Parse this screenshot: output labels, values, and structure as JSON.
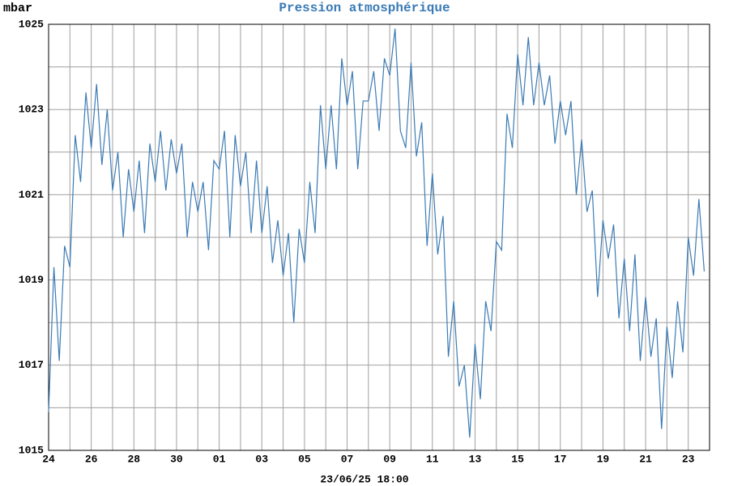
{
  "chart_data": {
    "type": "line",
    "title": "Pression atmosphérique",
    "y_label": "mbar",
    "x_label": "23/06/25 18:00",
    "categories": [
      "24",
      null,
      null,
      null,
      null,
      null,
      null,
      null,
      "26",
      null,
      null,
      null,
      null,
      null,
      null,
      null,
      "28",
      null,
      null,
      null,
      null,
      null,
      null,
      null,
      "30",
      null,
      null,
      null,
      null,
      null,
      null,
      null,
      "01",
      null,
      null,
      null,
      null,
      null,
      null,
      null,
      "03",
      null,
      null,
      null,
      null,
      null,
      null,
      null,
      "05",
      null,
      null,
      null,
      null,
      null,
      null,
      null,
      "07",
      null,
      null,
      null,
      null,
      null,
      null,
      null,
      "09",
      null,
      null,
      null,
      null,
      null,
      null,
      null,
      "11",
      null,
      null,
      null,
      null,
      null,
      null,
      null,
      "13",
      null,
      null,
      null,
      null,
      null,
      null,
      null,
      "15",
      null,
      null,
      null,
      null,
      null,
      null,
      null,
      "17",
      null,
      null,
      null,
      null,
      null,
      null,
      null,
      "19",
      null,
      null,
      null,
      null,
      null,
      null,
      null,
      "21",
      null,
      null,
      null,
      null,
      null,
      null,
      null,
      "23",
      null,
      null,
      null
    ],
    "series": [
      {
        "name": "Pression",
        "color": "#3b7bb5",
        "values": [
          1015.9,
          1019.3,
          1017.1,
          1019.8,
          1019.3,
          1022.4,
          1021.3,
          1023.4,
          1022.1,
          1023.6,
          1021.7,
          1023.0,
          1021.1,
          1022.0,
          1020.0,
          1021.6,
          1020.6,
          1021.8,
          1020.1,
          1022.2,
          1021.3,
          1022.5,
          1021.1,
          1022.3,
          1021.5,
          1022.2,
          1020.0,
          1021.3,
          1020.6,
          1021.3,
          1019.7,
          1021.8,
          1021.6,
          1022.5,
          1020.0,
          1022.4,
          1021.2,
          1022.0,
          1020.1,
          1021.8,
          1020.1,
          1021.2,
          1019.4,
          1020.4,
          1019.1,
          1020.1,
          1018.0,
          1020.2,
          1019.4,
          1021.3,
          1020.1,
          1023.1,
          1021.6,
          1023.1,
          1021.6,
          1024.2,
          1023.1,
          1023.9,
          1021.6,
          1023.2,
          1023.2,
          1023.9,
          1022.5,
          1024.2,
          1023.8,
          1024.9,
          1022.5,
          1022.1,
          1024.1,
          1021.9,
          1022.7,
          1019.8,
          1021.5,
          1019.6,
          1020.5,
          1017.2,
          1018.5,
          1016.5,
          1017.0,
          1015.3,
          1017.5,
          1016.2,
          1018.5,
          1017.8,
          1019.9,
          1019.7,
          1022.9,
          1022.1,
          1024.3,
          1023.1,
          1024.7,
          1023.1,
          1024.1,
          1023.1,
          1023.8,
          1022.2,
          1023.2,
          1022.4,
          1023.2,
          1021.0,
          1022.3,
          1020.6,
          1021.1,
          1018.6,
          1020.4,
          1019.5,
          1020.3,
          1018.1,
          1019.5,
          1017.8,
          1019.6,
          1017.1,
          1018.6,
          1017.2,
          1018.1,
          1015.5,
          1017.9,
          1016.7,
          1018.5,
          1017.3,
          1020.0,
          1019.1,
          1020.9,
          1019.2
        ]
      }
    ],
    "ylim": [
      1015,
      1025
    ],
    "yticks": [
      1015,
      1017,
      1019,
      1021,
      1023,
      1025
    ],
    "grid": true
  }
}
